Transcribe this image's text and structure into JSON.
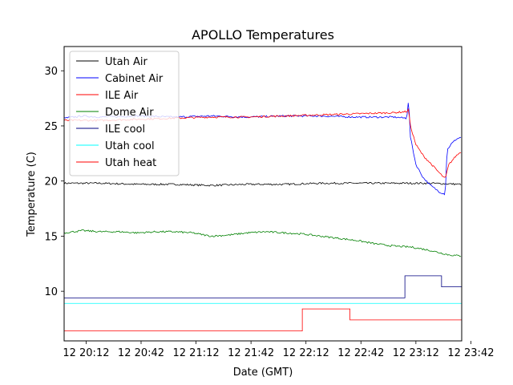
{
  "chart_data": {
    "type": "line",
    "title": "APOLLO Temperatures",
    "xlabel": "Date (GMT)",
    "ylabel": "Temperature (C)",
    "xlim_minutes": [
      0,
      217
    ],
    "ylim": [
      5.5,
      32.2
    ],
    "x_unit_note": "minutes after 20:00 GMT on day 12",
    "x_ticks": [
      {
        "minute": 12,
        "label": "12 20:12"
      },
      {
        "minute": 42,
        "label": "12 20:42"
      },
      {
        "minute": 72,
        "label": "12 21:12"
      },
      {
        "minute": 102,
        "label": "12 21:42"
      },
      {
        "minute": 132,
        "label": "12 22:12"
      },
      {
        "minute": 162,
        "label": "12 22:42"
      },
      {
        "minute": 192,
        "label": "12 23:12"
      },
      {
        "minute": 222,
        "label": "12 23:42"
      }
    ],
    "y_ticks": [
      10,
      15,
      20,
      25,
      30
    ],
    "legend_position": "upper-left",
    "series": [
      {
        "name": "Utah Air",
        "color": "#000000",
        "style": "noisy",
        "x": [
          0,
          20,
          40,
          60,
          80,
          100,
          120,
          140,
          160,
          180,
          200,
          217
        ],
        "y": [
          19.8,
          19.8,
          19.7,
          19.7,
          19.6,
          19.7,
          19.7,
          19.8,
          19.8,
          19.8,
          19.8,
          19.7
        ]
      },
      {
        "name": "Cabinet Air",
        "color": "#0000ff",
        "style": "noisy",
        "x": [
          0,
          10,
          20,
          40,
          60,
          80,
          100,
          120,
          140,
          160,
          180,
          187,
          188,
          189,
          192,
          196,
          200,
          205,
          208,
          209,
          211,
          214,
          217
        ],
        "y": [
          25.7,
          25.9,
          25.8,
          25.9,
          25.8,
          25.9,
          25.8,
          25.9,
          25.9,
          25.8,
          25.8,
          25.7,
          27.5,
          24.0,
          21.5,
          20.3,
          19.6,
          19.0,
          18.8,
          22.8,
          23.3,
          23.8,
          24.0
        ]
      },
      {
        "name": "ILE Air",
        "color": "#ff0000",
        "style": "noisy",
        "x": [
          0,
          20,
          40,
          60,
          80,
          100,
          120,
          140,
          160,
          180,
          187,
          188,
          189,
          192,
          196,
          200,
          205,
          208,
          210,
          214,
          217
        ],
        "y": [
          25.5,
          25.5,
          25.6,
          25.7,
          25.8,
          25.8,
          25.9,
          26.0,
          26.1,
          26.2,
          26.3,
          26.5,
          25.0,
          23.3,
          22.3,
          21.6,
          20.7,
          20.2,
          21.5,
          22.3,
          22.7
        ]
      },
      {
        "name": "Dome Air",
        "color": "#008000",
        "style": "noisy",
        "x": [
          0,
          10,
          20,
          30,
          40,
          50,
          60,
          70,
          80,
          90,
          100,
          110,
          120,
          130,
          140,
          150,
          160,
          170,
          180,
          190,
          200,
          210,
          217
        ],
        "y": [
          15.3,
          15.5,
          15.4,
          15.4,
          15.3,
          15.4,
          15.4,
          15.3,
          15.0,
          15.1,
          15.3,
          15.4,
          15.3,
          15.2,
          15.0,
          14.8,
          14.6,
          14.3,
          14.1,
          14.0,
          13.7,
          13.3,
          13.2
        ]
      },
      {
        "name": "ILE cool",
        "color": "#000080",
        "style": "step",
        "x": [
          0,
          186,
          186,
          206,
          206,
          217
        ],
        "y": [
          9.4,
          9.4,
          11.4,
          11.4,
          10.4,
          10.4
        ]
      },
      {
        "name": "Utah cool",
        "color": "#00ffff",
        "style": "step",
        "x": [
          0,
          217
        ],
        "y": [
          8.9,
          8.9
        ]
      },
      {
        "name": "Utah heat",
        "color": "#ff0000",
        "style": "step",
        "x": [
          0,
          130,
          130,
          156,
          156,
          217
        ],
        "y": [
          6.4,
          6.4,
          8.4,
          8.4,
          7.4,
          7.4
        ]
      }
    ]
  }
}
